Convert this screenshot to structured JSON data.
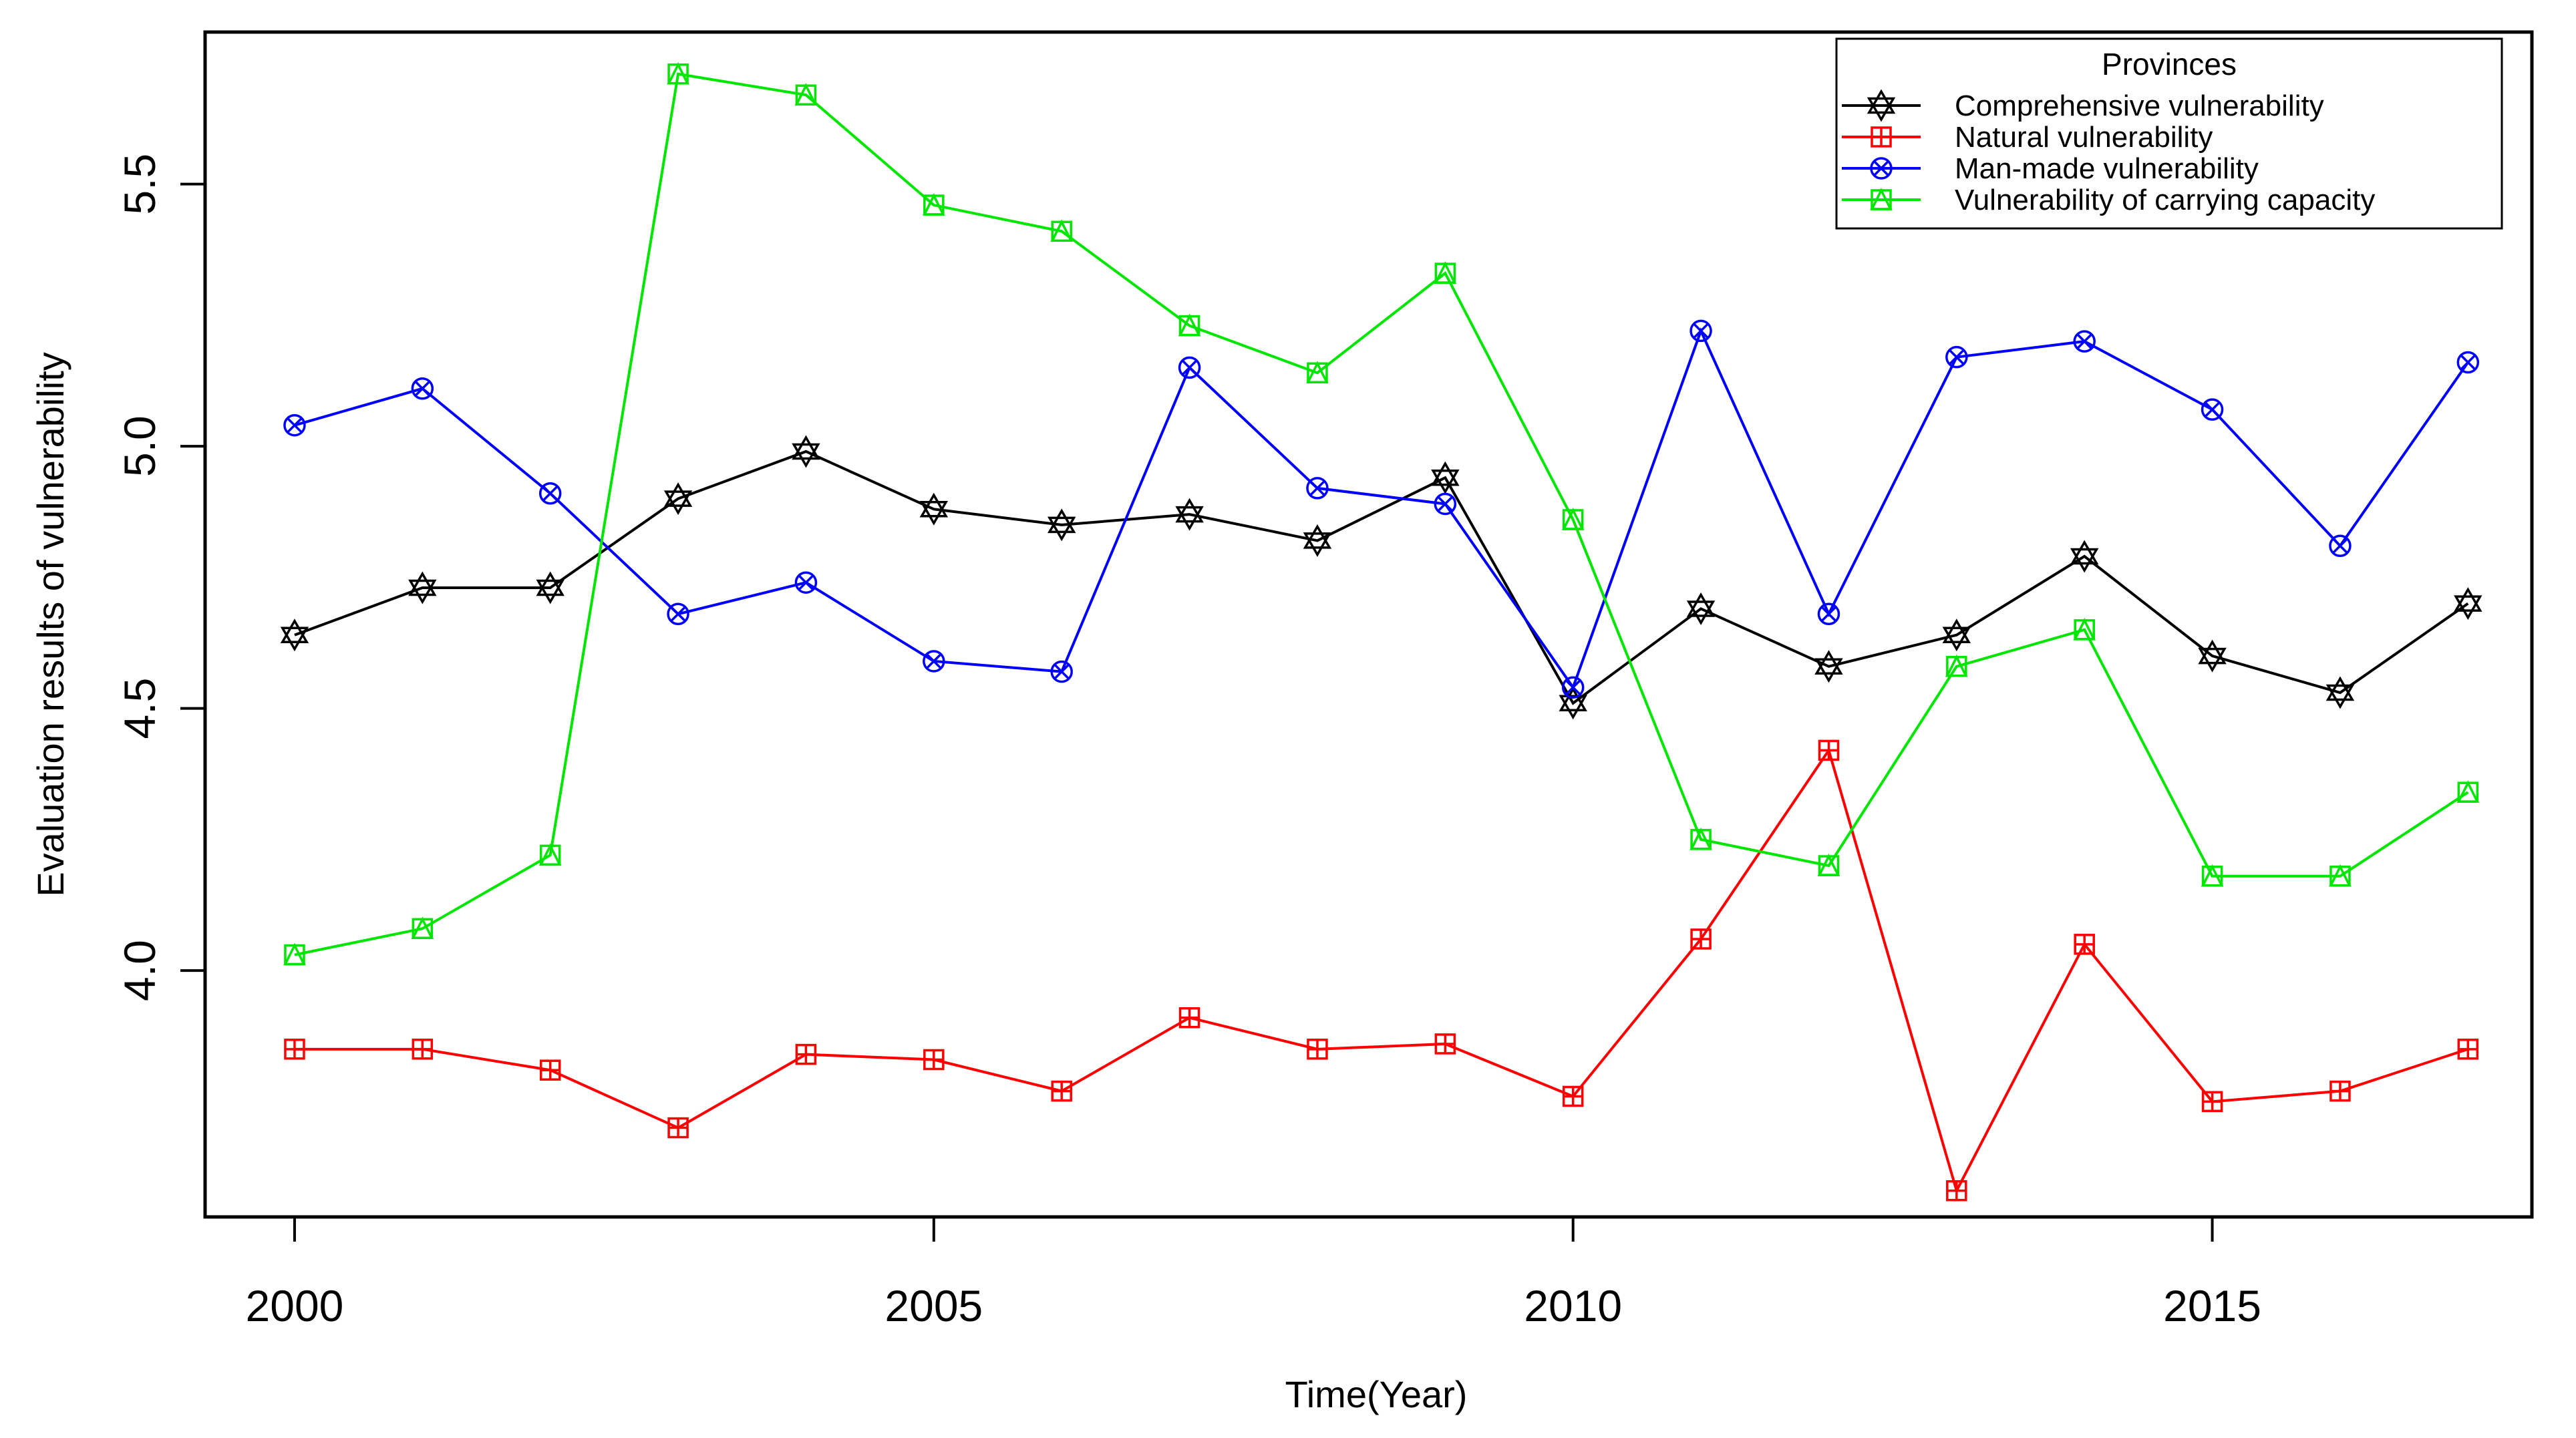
{
  "figure": {
    "background": "#FFFFFF",
    "frame_color": "#000000"
  },
  "chart_data": {
    "type": "line",
    "title": "",
    "xlabel": "Time(Year)",
    "ylabel": "Evaluation results of vulnerability",
    "x": [
      2000,
      2001,
      2002,
      2003,
      2004,
      2005,
      2006,
      2007,
      2008,
      2009,
      2010,
      2011,
      2012,
      2013,
      2014,
      2015,
      2016,
      2017
    ],
    "series": [
      {
        "name": "Comprehensive vulnerability",
        "color": "#000000",
        "marker": "star-of-david",
        "values": [
          4.64,
          4.73,
          4.73,
          4.9,
          4.99,
          4.88,
          4.85,
          4.87,
          4.82,
          4.94,
          4.51,
          4.69,
          4.58,
          4.64,
          4.79,
          4.6,
          4.53,
          4.7
        ]
      },
      {
        "name": "Natural vulnerability",
        "color": "#FF0000",
        "marker": "square-plus",
        "values": [
          3.85,
          3.85,
          3.81,
          3.7,
          3.84,
          3.83,
          3.77,
          3.91,
          3.85,
          3.86,
          3.76,
          4.06,
          4.42,
          3.58,
          4.05,
          3.75,
          3.77,
          3.85
        ]
      },
      {
        "name": "Man-made vulnerability",
        "color": "#0000FF",
        "marker": "circle-x",
        "values": [
          5.04,
          5.11,
          4.91,
          4.68,
          4.74,
          4.59,
          4.57,
          5.15,
          4.92,
          4.89,
          4.54,
          5.22,
          4.68,
          5.17,
          5.2,
          5.07,
          4.81,
          5.16
        ]
      },
      {
        "name": "Vulnerability of carrying capacity",
        "color": "#00E600",
        "marker": "square-triangle",
        "values": [
          4.03,
          4.08,
          4.22,
          5.71,
          5.67,
          5.46,
          5.41,
          5.23,
          5.14,
          5.33,
          4.86,
          4.25,
          4.2,
          4.58,
          4.65,
          4.18,
          4.18,
          4.34
        ]
      }
    ],
    "xticks": [
      2000,
      2005,
      2010,
      2015
    ],
    "xtick_labels": [
      "2000",
      "2005",
      "2010",
      "2015"
    ],
    "yticks": [
      4.0,
      4.5,
      5.0,
      5.5
    ],
    "ytick_labels": [
      "4.0",
      "4.5",
      "5.0",
      "5.5"
    ],
    "xlim": [
      1999.3,
      2017.5
    ],
    "ylim": [
      3.53,
      5.79
    ],
    "grid": false,
    "legend": {
      "title": "Provinces",
      "position": "top-right",
      "entries": [
        "Comprehensive vulnerability",
        "Natural vulnerability",
        "Man-made vulnerability",
        "Vulnerability of carrying capacity"
      ]
    }
  }
}
